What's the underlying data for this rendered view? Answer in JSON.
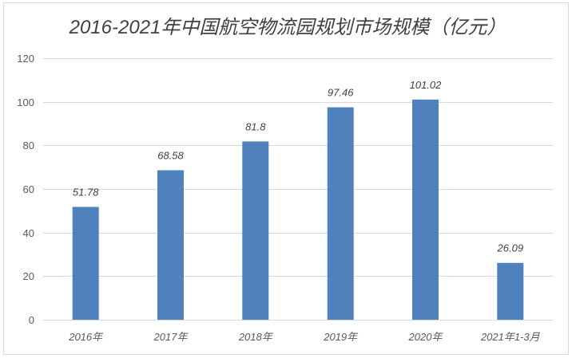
{
  "chart_data": {
    "type": "bar",
    "title": "2016-2021年中国航空物流园规划市场规模（亿元）",
    "categories": [
      "2016年",
      "2017年",
      "2018年",
      "2019年",
      "2020年",
      "2021年1-3月"
    ],
    "values": [
      51.78,
      68.58,
      81.8,
      97.46,
      101.02,
      26.09
    ],
    "ylim": [
      0,
      120
    ],
    "yticks": [
      0,
      20,
      40,
      60,
      80,
      100,
      120
    ],
    "grid": true,
    "show_legend": false,
    "data_labels": true,
    "bar_color": "#4F81BD"
  }
}
